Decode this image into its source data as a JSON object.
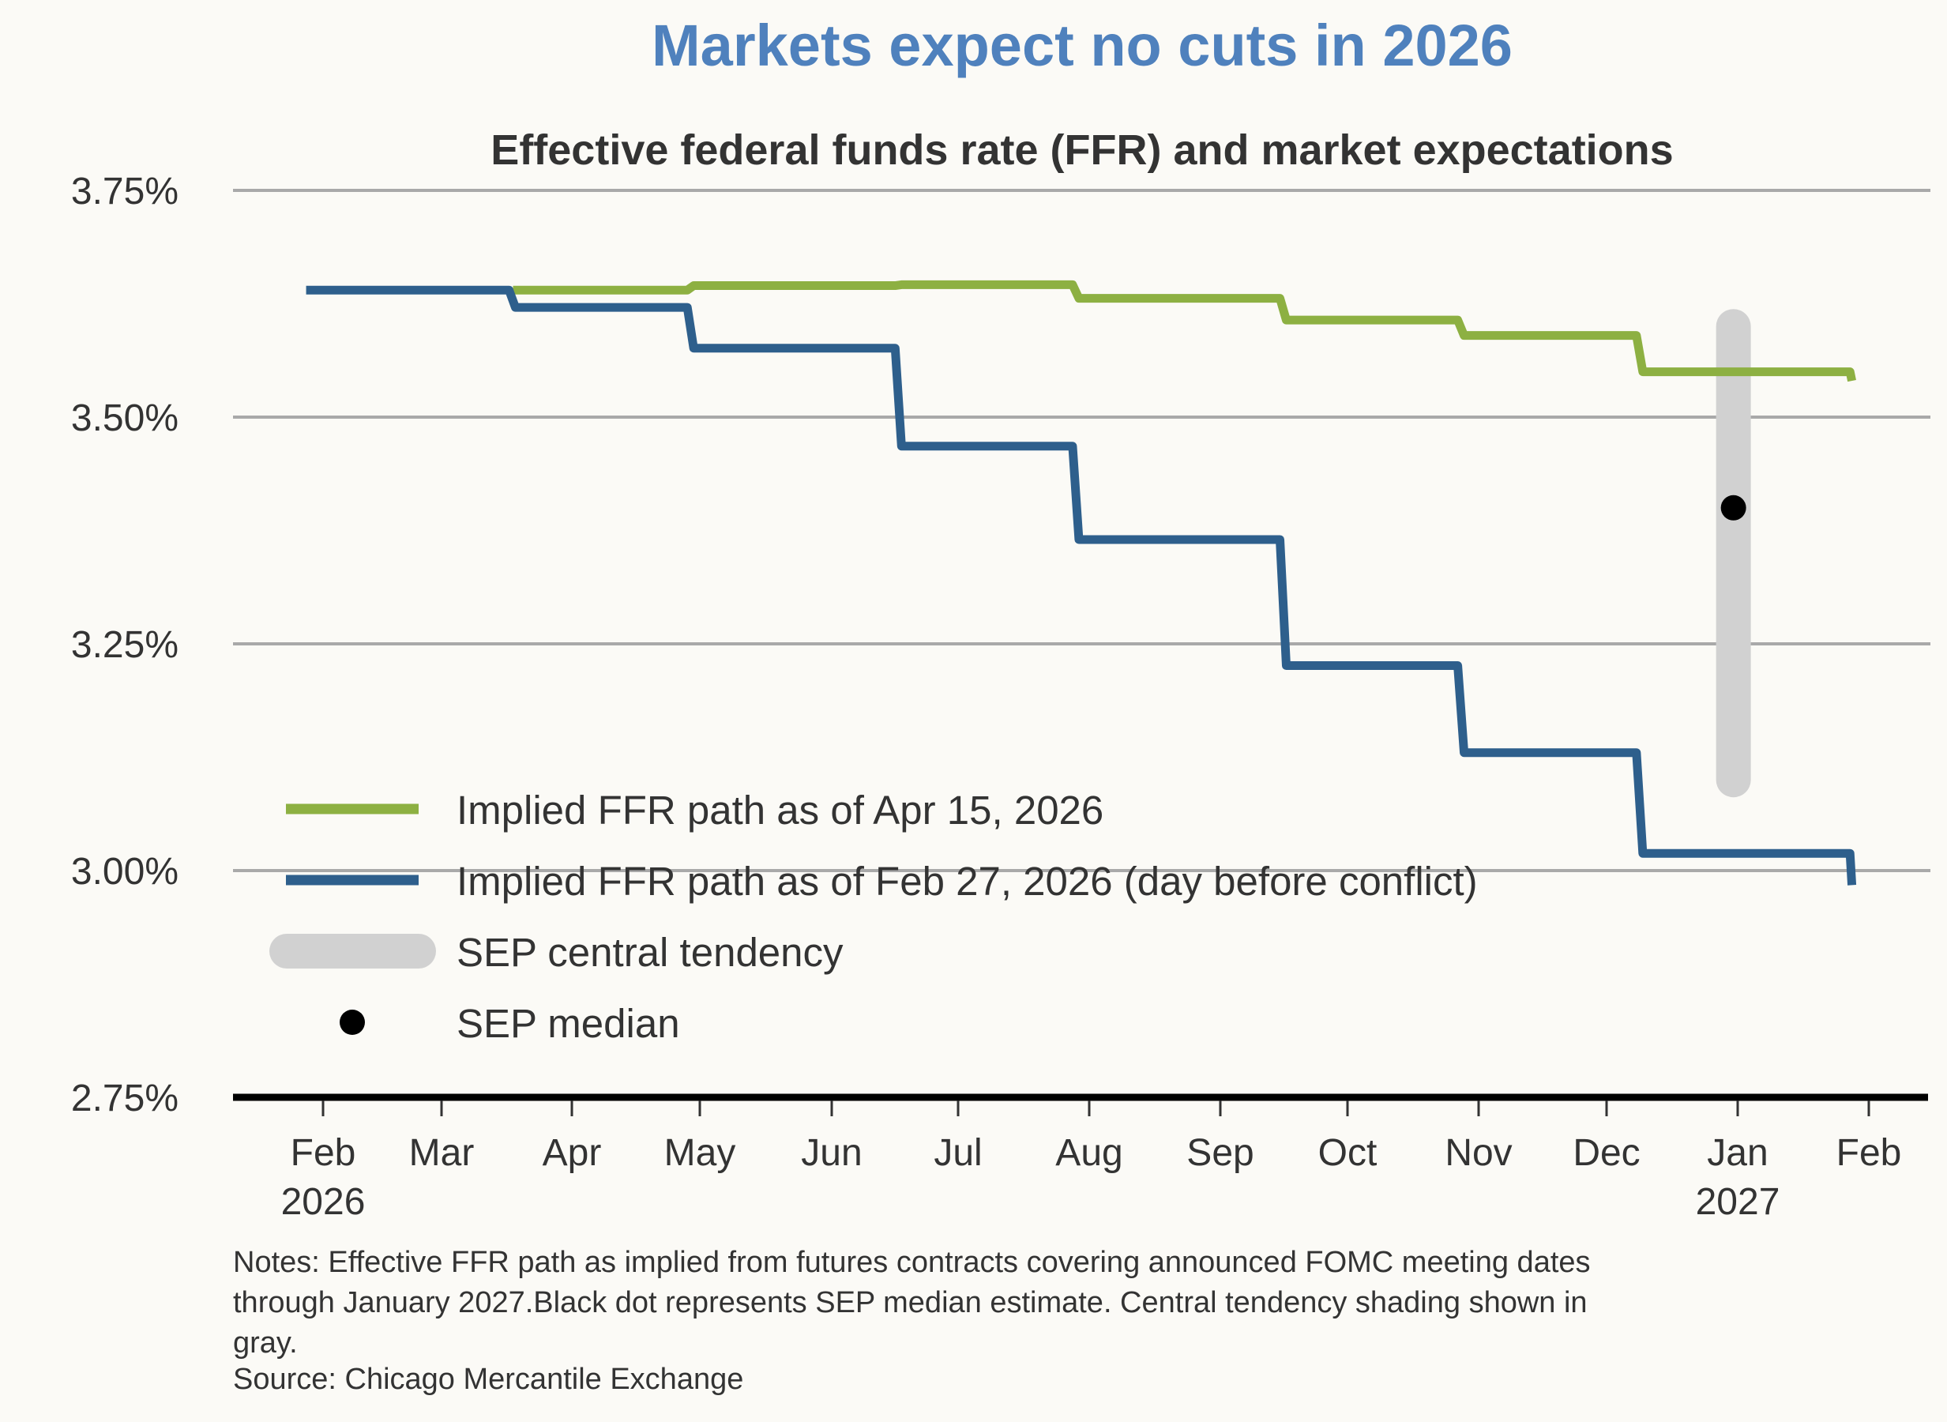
{
  "chart_data": {
    "type": "line",
    "title": "Markets expect no cuts in 2026",
    "subtitle": "Effective federal funds rate (FFR) and market expectations",
    "xlabel": "",
    "ylabel": "",
    "ylim": [
      2.75,
      3.75
    ],
    "yticks": [
      {
        "value": 3.75,
        "label": "3.75%"
      },
      {
        "value": 3.5,
        "label": "3.50%"
      },
      {
        "value": 3.25,
        "label": "3.25%"
      },
      {
        "value": 3.0,
        "label": "3.00%"
      },
      {
        "value": 2.75,
        "label": "2.75%"
      }
    ],
    "xlim": [
      "2026-01-20",
      "2027-02-15"
    ],
    "xticks": [
      {
        "date": "2026-02-01",
        "label": "Feb",
        "sublabel": "2026"
      },
      {
        "date": "2026-03-01",
        "label": "Mar",
        "sublabel": ""
      },
      {
        "date": "2026-04-01",
        "label": "Apr",
        "sublabel": ""
      },
      {
        "date": "2026-05-01",
        "label": "May",
        "sublabel": ""
      },
      {
        "date": "2026-06-01",
        "label": "Jun",
        "sublabel": ""
      },
      {
        "date": "2026-07-01",
        "label": "Jul",
        "sublabel": ""
      },
      {
        "date": "2026-08-01",
        "label": "Aug",
        "sublabel": ""
      },
      {
        "date": "2026-09-01",
        "label": "Sep",
        "sublabel": ""
      },
      {
        "date": "2026-10-01",
        "label": "Oct",
        "sublabel": ""
      },
      {
        "date": "2026-11-01",
        "label": "Nov",
        "sublabel": ""
      },
      {
        "date": "2026-12-01",
        "label": "Dec",
        "sublabel": ""
      },
      {
        "date": "2027-01-01",
        "label": "Jan",
        "sublabel": "2027"
      },
      {
        "date": "2027-02-01",
        "label": "Feb",
        "sublabel": ""
      }
    ],
    "grid": true,
    "legend_position": "bottom-left",
    "series": [
      {
        "name": "Implied FFR path as of Apr 15, 2026",
        "color": "#8db042",
        "style": "step",
        "points": [
          {
            "date": "2026-03-18",
            "value": 3.64
          },
          {
            "date": "2026-04-29",
            "value": 3.645
          },
          {
            "date": "2026-06-17",
            "value": 3.646
          },
          {
            "date": "2026-07-29",
            "value": 3.631
          },
          {
            "date": "2026-09-16",
            "value": 3.607
          },
          {
            "date": "2026-10-28",
            "value": 3.59
          },
          {
            "date": "2026-12-09",
            "value": 3.55
          },
          {
            "date": "2027-01-27",
            "value": 3.55
          },
          {
            "date": "2027-01-28",
            "value": 3.54
          }
        ]
      },
      {
        "name": "Implied FFR path as of Feb 27, 2026 (day before conflict)",
        "color": "#2e5f8c",
        "style": "step",
        "points": [
          {
            "date": "2026-01-28",
            "value": 3.64
          },
          {
            "date": "2026-03-18",
            "value": 3.621
          },
          {
            "date": "2026-04-29",
            "value": 3.576
          },
          {
            "date": "2026-06-17",
            "value": 3.468
          },
          {
            "date": "2026-07-29",
            "value": 3.365
          },
          {
            "date": "2026-09-16",
            "value": 3.226
          },
          {
            "date": "2026-10-28",
            "value": 3.13
          },
          {
            "date": "2026-12-09",
            "value": 3.019
          },
          {
            "date": "2027-01-27",
            "value": 3.019
          },
          {
            "date": "2027-01-28",
            "value": 2.984
          }
        ]
      }
    ],
    "sep_central_tendency": {
      "name": "SEP central tendency",
      "color": "#d1d1d1",
      "date": "2026-12-31",
      "low": 3.1,
      "high": 3.6
    },
    "sep_median": {
      "name": "SEP median",
      "color": "#000000",
      "date": "2026-12-31",
      "value": 3.4
    },
    "legend": [
      {
        "label": "Implied FFR path as of Apr 15, 2026",
        "kind": "line",
        "color": "#8db042"
      },
      {
        "label": "Implied FFR path as of Feb 27, 2026 (day before conflict)",
        "kind": "line",
        "color": "#2e5f8c"
      },
      {
        "label": "SEP central tendency",
        "kind": "band",
        "color": "#d1d1d1"
      },
      {
        "label": "SEP median",
        "kind": "dot",
        "color": "#000000"
      }
    ],
    "notes": [
      "Notes: Effective FFR path as implied from futures contracts covering announced FOMC meeting dates",
      "through January 2027.Black dot represents SEP median estimate. Central tendency shading shown in",
      "gray.",
      "Source: Chicago Mercantile Exchange"
    ]
  }
}
